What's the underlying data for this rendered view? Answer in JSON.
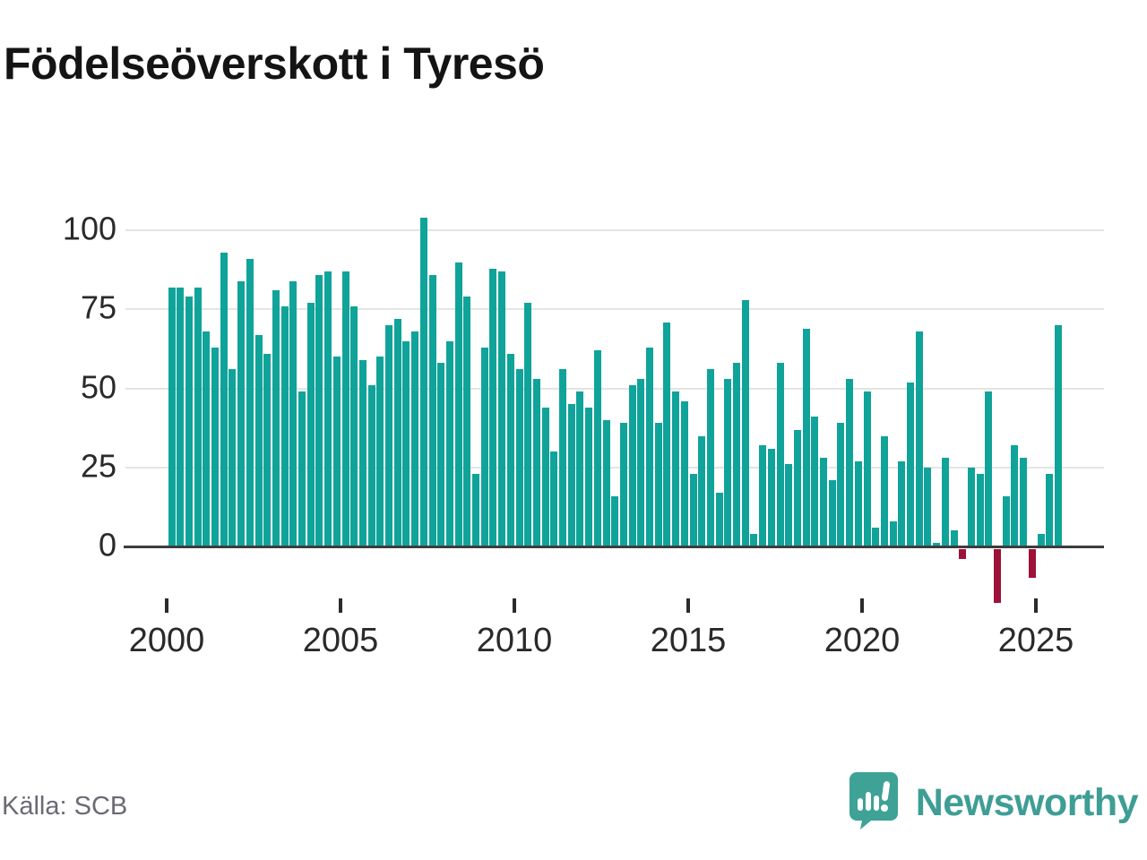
{
  "title": "Födelseöverskott i Tyresö",
  "source": "Källa: SCB",
  "brand": {
    "name": "Newsworthy"
  },
  "colors": {
    "bar_positive": "#10a39a",
    "bar_negative": "#9d1239",
    "grid": "#e4e4e4",
    "zero_axis": "#3d3d3d",
    "text": "#2a2a2a",
    "muted_text": "#6a6a74",
    "brand_teal": "#3e9e96"
  },
  "chart_data": {
    "type": "bar",
    "title": "Födelseöverskott i Tyresö",
    "xlabel": "",
    "ylabel": "",
    "frequency": "quarterly",
    "start_period": "2000Q1",
    "end_period": "2025Q3",
    "ylim": [
      -20,
      110
    ],
    "grid": true,
    "y_ticks": [
      0,
      25,
      50,
      75,
      100
    ],
    "y_tick_labels": [
      "0",
      "25",
      "50",
      "75",
      "100"
    ],
    "x_tick_labels": [
      "2000",
      "2005",
      "2010",
      "2015",
      "2020",
      "2025"
    ],
    "values": [
      82,
      82,
      79,
      82,
      68,
      63,
      93,
      56,
      84,
      91,
      67,
      61,
      81,
      76,
      84,
      49,
      77,
      86,
      87,
      60,
      87,
      76,
      59,
      51,
      60,
      70,
      72,
      65,
      68,
      104,
      86,
      58,
      65,
      90,
      79,
      23,
      63,
      88,
      87,
      61,
      56,
      77,
      53,
      44,
      30,
      56,
      45,
      49,
      44,
      62,
      40,
      16,
      39,
      51,
      53,
      63,
      39,
      71,
      49,
      46,
      23,
      35,
      56,
      17,
      53,
      58,
      78,
      4,
      32,
      31,
      58,
      26,
      37,
      69,
      41,
      28,
      21,
      39,
      53,
      27,
      49,
      6,
      35,
      8,
      27,
      52,
      68,
      25,
      1,
      28,
      5,
      -3,
      25,
      23,
      49,
      -17,
      16,
      32,
      28,
      -9,
      4,
      23,
      70
    ]
  }
}
